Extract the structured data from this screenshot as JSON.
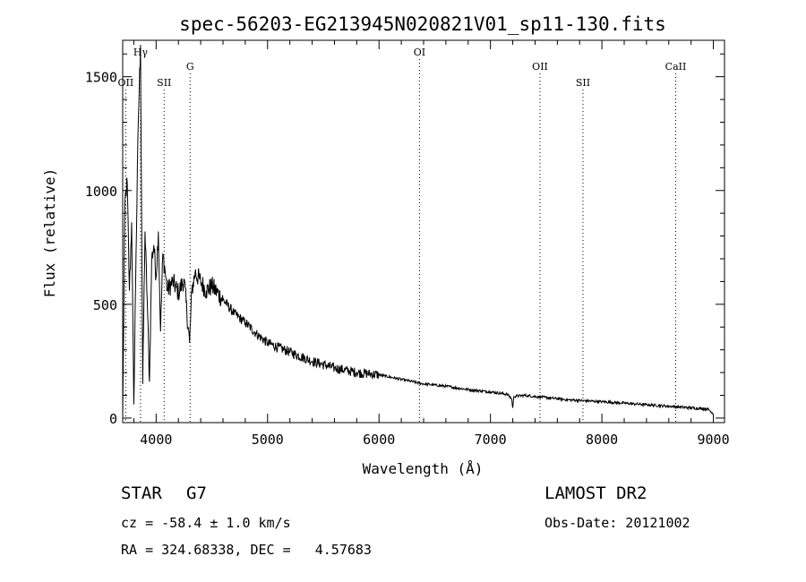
{
  "chart_data": {
    "type": "line",
    "title": "spec-56203-EG213945N020821V01_sp11-130.fits",
    "xlabel": "Wavelength (Å)",
    "ylabel": "Flux (relative)",
    "xlim": [
      3700,
      9100
    ],
    "ylim": [
      -20,
      1660
    ],
    "xticks": [
      4000,
      5000,
      6000,
      7000,
      8000,
      9000
    ],
    "yticks": [
      0,
      500,
      1000,
      1500
    ],
    "line_markers": [
      {
        "label": "OII",
        "wavelength": 3727,
        "level": "low"
      },
      {
        "label": "Hγ",
        "wavelength": 3860,
        "level": "high"
      },
      {
        "label": "SII",
        "wavelength": 4072,
        "level": "low"
      },
      {
        "label": "G",
        "wavelength": 4305,
        "level": "mid"
      },
      {
        "label": "OI",
        "wavelength": 6363,
        "level": "high"
      },
      {
        "label": "OII",
        "wavelength": 7445,
        "level": "mid"
      },
      {
        "label": "SII",
        "wavelength": 7830,
        "level": "low"
      },
      {
        "label": "CaII",
        "wavelength": 8662,
        "level": "mid"
      }
    ],
    "series": [
      {
        "name": "flux",
        "x": [
          3700,
          3720,
          3740,
          3760,
          3780,
          3800,
          3820,
          3840,
          3860,
          3880,
          3900,
          3920,
          3940,
          3960,
          3980,
          4000,
          4020,
          4040,
          4060,
          4080,
          4100,
          4150,
          4200,
          4250,
          4300,
          4320,
          4350,
          4400,
          4450,
          4500,
          4600,
          4700,
          4800,
          4900,
          5000,
          5200,
          5400,
          5600,
          5800,
          6000,
          6200,
          6400,
          6600,
          6800,
          7000,
          7150,
          7190,
          7200,
          7210,
          7300,
          7500,
          7700,
          8000,
          8300,
          8600,
          8800,
          8950,
          9000
        ],
        "y": [
          0,
          950,
          1040,
          560,
          860,
          60,
          720,
          1300,
          1640,
          150,
          820,
          520,
          160,
          700,
          760,
          620,
          820,
          380,
          720,
          650,
          560,
          600,
          550,
          610,
          330,
          560,
          640,
          600,
          560,
          580,
          520,
          460,
          420,
          370,
          330,
          290,
          250,
          220,
          200,
          190,
          170,
          150,
          140,
          125,
          115,
          105,
          85,
          45,
          95,
          100,
          90,
          80,
          72,
          62,
          52,
          45,
          40,
          20
        ]
      }
    ]
  },
  "info": {
    "object_class": "STAR",
    "subclass": "G7",
    "survey": "LAMOST DR2",
    "redshift": "cz = -58.4 ± 1.0 km/s",
    "obs_date": "Obs-Date: 20121002",
    "coords": "RA = 324.68338, DEC =   4.57683"
  }
}
